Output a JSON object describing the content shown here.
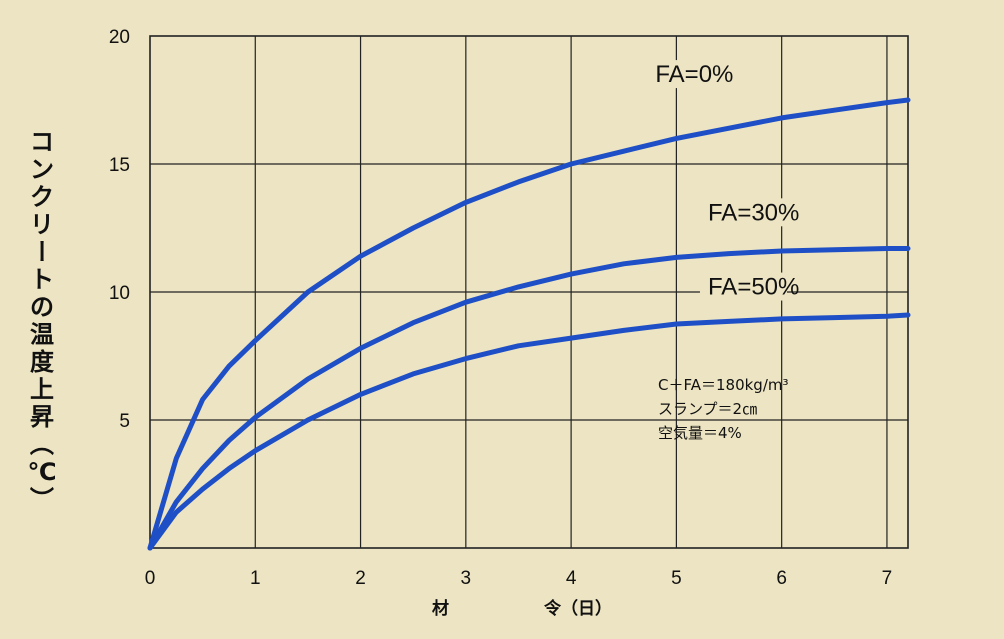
{
  "chart_data": {
    "type": "line",
    "xlabel_left": "材",
    "xlabel_right": "令（日）",
    "ylabel": "コンクリートの温度上昇（℃）",
    "xlim": [
      0,
      7.2
    ],
    "ylim": [
      0,
      20
    ],
    "x_ticks": [
      "0",
      "1",
      "2",
      "3",
      "4",
      "5",
      "6",
      "7"
    ],
    "y_ticks": [
      "5",
      "10",
      "15",
      "20"
    ],
    "grid": true,
    "series": [
      {
        "name": "FA=0%",
        "color": "#1f4fc6",
        "x": [
          0,
          0.25,
          0.5,
          0.75,
          1,
          1.5,
          2,
          2.5,
          3,
          3.5,
          4,
          4.5,
          5,
          5.5,
          6,
          6.5,
          7,
          7.2
        ],
        "y": [
          0,
          3.5,
          5.8,
          7.1,
          8.1,
          10.0,
          11.4,
          12.5,
          13.5,
          14.3,
          15.0,
          15.5,
          16.0,
          16.4,
          16.8,
          17.1,
          17.4,
          17.5
        ]
      },
      {
        "name": "FA=30%",
        "color": "#1f4fc6",
        "x": [
          0,
          0.25,
          0.5,
          0.75,
          1,
          1.5,
          2,
          2.5,
          3,
          3.5,
          4,
          4.5,
          5,
          5.5,
          6,
          6.5,
          7,
          7.2
        ],
        "y": [
          0,
          1.8,
          3.1,
          4.2,
          5.1,
          6.6,
          7.8,
          8.8,
          9.6,
          10.2,
          10.7,
          11.1,
          11.35,
          11.5,
          11.6,
          11.65,
          11.7,
          11.7
        ]
      },
      {
        "name": "FA=50%",
        "color": "#1f4fc6",
        "x": [
          0,
          0.25,
          0.5,
          0.75,
          1,
          1.5,
          2,
          2.5,
          3,
          3.5,
          4,
          4.5,
          5,
          5.5,
          6,
          6.5,
          7,
          7.2
        ],
        "y": [
          0,
          1.4,
          2.3,
          3.1,
          3.8,
          5.0,
          6.0,
          6.8,
          7.4,
          7.9,
          8.2,
          8.5,
          8.75,
          8.85,
          8.95,
          9.0,
          9.05,
          9.1
        ]
      }
    ],
    "series_labels": [
      {
        "text": "FA=0%",
        "at": [
          4.8,
          18.2
        ]
      },
      {
        "text": "FA=30%",
        "at": [
          5.3,
          12.8
        ]
      },
      {
        "text": "FA=50%",
        "at": [
          5.3,
          9.9
        ]
      }
    ],
    "annotation_lines": [
      "C＋FA＝180kg/m³",
      "スランプ＝2㎝",
      "空気量＝4%"
    ]
  }
}
